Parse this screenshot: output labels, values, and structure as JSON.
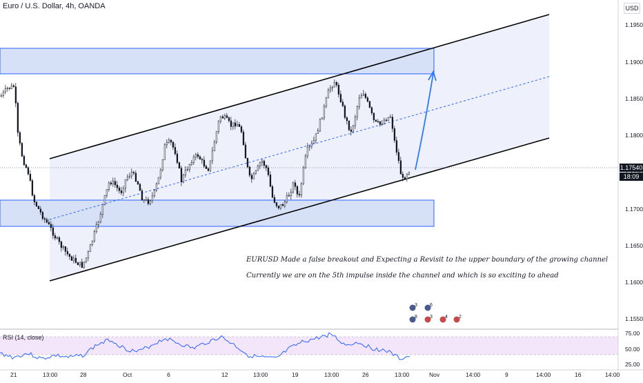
{
  "header": {
    "symbol_title": "Euro / U.S. Dollar, 4h, OANDA",
    "currency": "USD"
  },
  "price_axis": {
    "ticks": [
      "1.19500",
      "1.19000",
      "1.18500",
      "1.18000",
      "1.17500",
      "1.17000",
      "1.16500",
      "1.16000",
      "1.15500"
    ],
    "current_price": "1.17540",
    "countdown": "18:09"
  },
  "time_axis": {
    "ticks": [
      "21",
      "13:00",
      "28",
      "Oct",
      "6",
      "12",
      "13:00",
      "19",
      "13:00",
      "26",
      "13:00",
      "Nov",
      "14:00",
      "9",
      "14:00",
      "16",
      "14:00"
    ]
  },
  "rsi": {
    "label": "RSI (14, close)",
    "ticks": [
      "75.00",
      "50.00",
      "25.00"
    ]
  },
  "annotations": [
    "EURUSD Made a false breakout and Expecting a Revisit to the upper boundary of the growing channel",
    "Currently we are on the 5th impulse inside the channel and which is so exciting to ahead"
  ],
  "events": {
    "counts": [
      "3",
      "6",
      "8",
      "3",
      "4",
      "2"
    ]
  },
  "colors": {
    "zone_fill": "#d6e0f7",
    "zone_border": "#2962ff",
    "channel_fill": "#eef0fb",
    "arrow": "#2979ff",
    "rsi_line": "#2962ff",
    "rsi_band": "#f3e5fa"
  }
}
